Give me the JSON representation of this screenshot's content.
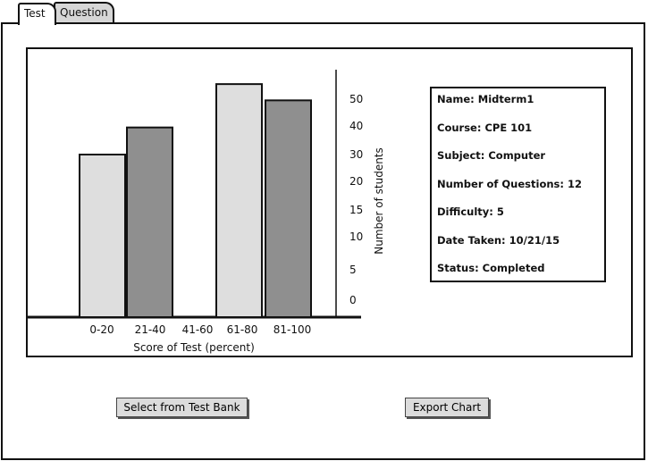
{
  "tabs": [
    {
      "label": "Test"
    },
    {
      "label": "Question"
    }
  ],
  "chart_data": {
    "type": "bar",
    "categories": [
      "0-20",
      "21-40",
      "41-60",
      "61-80",
      "81-100"
    ],
    "values": [
      30,
      35,
      0,
      43,
      40
    ],
    "xlabel": "Score of Test (percent)",
    "ylabel": "Number of students",
    "y_ticks": [
      "0",
      "5",
      "10",
      "15",
      "20",
      "30",
      "40",
      "50"
    ],
    "y_axis_side": "right",
    "bar_colors": [
      "#dedede",
      "#8f8f8f",
      "#dedede",
      "#dedede",
      "#8f8f8f"
    ],
    "grid": false
  },
  "info": {
    "name": "Name:  Midterm1",
    "course": "Course: CPE 101",
    "subject": "Subject: Computer",
    "num_questions": "Number of Questions: 12",
    "difficulty": "Difficulty: 5",
    "date_taken": "Date Taken: 10/21/15",
    "status": "Status: Completed"
  },
  "buttons": {
    "select_bank": "Select from Test Bank",
    "export_chart": "Export Chart"
  }
}
